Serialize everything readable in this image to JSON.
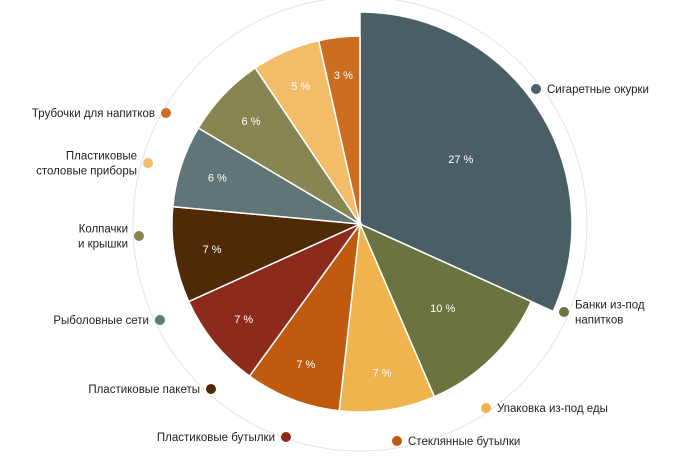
{
  "chart_data": {
    "type": "pie",
    "title": "",
    "start_angle_deg": 0,
    "direction": "clockwise",
    "slices": [
      {
        "label": "Сигаретные окурки",
        "value": 27,
        "value_label": "27 %",
        "color": "#4a5e65",
        "label_side": "right"
      },
      {
        "label": "Банки из-под напитков",
        "value": 10,
        "value_label": "10 %",
        "color": "#6b7440",
        "label_side": "right"
      },
      {
        "label": "Упаковка из-под еды",
        "value": 7,
        "value_label": "7 %",
        "color": "#f0b44e",
        "label_side": "right"
      },
      {
        "label": "Стеклянные бутылки",
        "value": 7,
        "value_label": "7 %",
        "color": "#c05a0e",
        "label_side": "right"
      },
      {
        "label": "Пластиковые бутылки",
        "value": 7,
        "value_label": "7 %",
        "color": "#8c2a1c",
        "label_side": "left"
      },
      {
        "label": "Пластиковые пакеты",
        "value": 7,
        "value_label": "7 %",
        "color": "#4f2a06",
        "label_side": "left"
      },
      {
        "label": "Рыболовные сети",
        "value": 6,
        "value_label": "6 %",
        "color": "#5f7576",
        "label_side": "left"
      },
      {
        "label": "Колпачки и крышки",
        "value": 6,
        "value_label": "6 %",
        "color": "#878552",
        "label_side": "left"
      },
      {
        "label": "Пластиковые столовые приборы",
        "value": 5,
        "value_label": "5 %",
        "color": "#f3bc68",
        "label_side": "left"
      },
      {
        "label": "Трубочки для напитков",
        "value": 3,
        "value_label": "3 %",
        "color": "#cc6e22",
        "label_side": "left"
      }
    ],
    "label_lines": [
      [
        "Сигаретные окурки"
      ],
      [
        "Банки из-под",
        "напитков"
      ],
      [
        "Упаковка из-под еды"
      ],
      [
        "Стеклянные бутылки"
      ],
      [
        "Пластиковые бутылки"
      ],
      [
        "Пластиковые пакеты"
      ],
      [
        "Рыболовные сети"
      ],
      [
        "Колпачки",
        "и крышки"
      ],
      [
        "Пластиковые",
        "столовые приборы"
      ],
      [
        "Трубочки для напитков"
      ]
    ],
    "legend": "labels beside slices with colored markers",
    "unit": "%"
  }
}
